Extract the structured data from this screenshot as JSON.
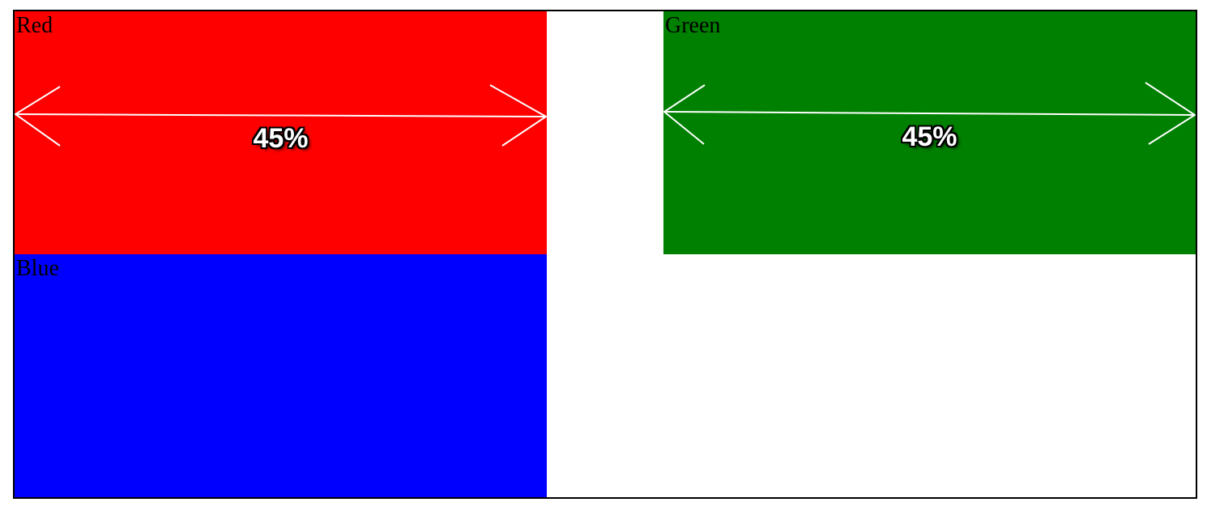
{
  "boxes": {
    "red": {
      "label": "Red",
      "color": "#ff0000",
      "width_percent": "45%"
    },
    "green": {
      "label": "Green",
      "color": "#008000",
      "width_percent": "45%"
    },
    "blue": {
      "label": "Blue",
      "color": "#0000ff"
    }
  },
  "border_color": "#000000",
  "measure_line_color": "#ffffff",
  "measure_arrow_icon": "double-headed-arrow"
}
